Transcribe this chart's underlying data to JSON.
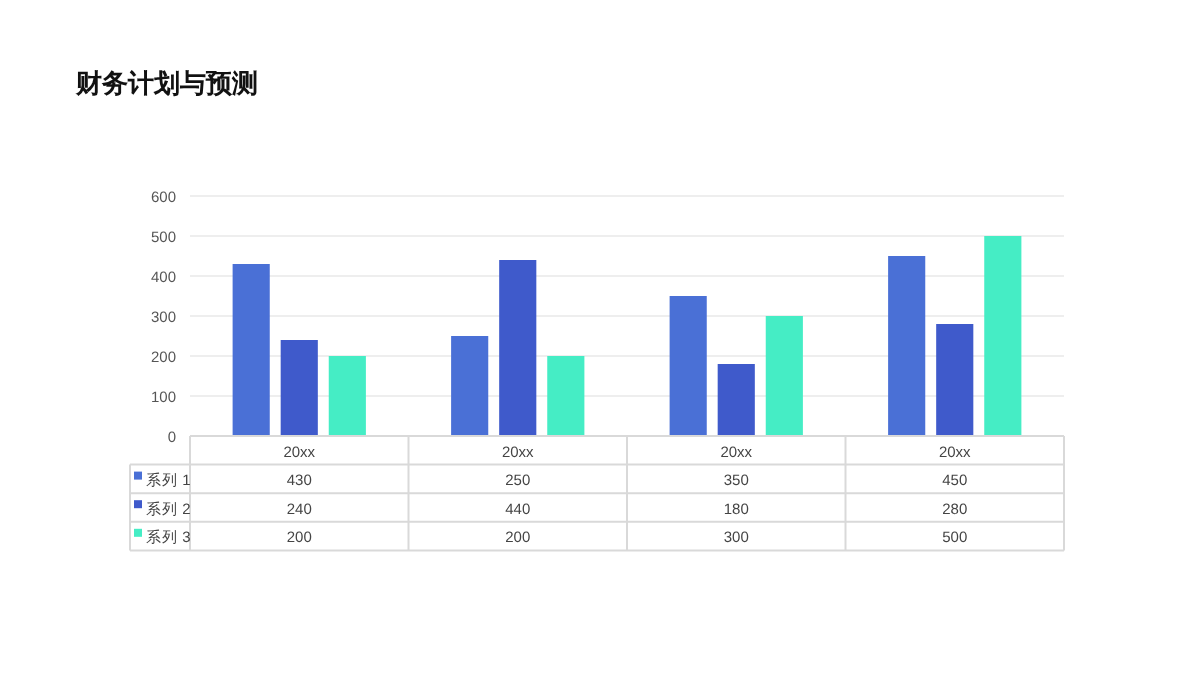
{
  "chart_data": {
    "type": "bar",
    "title": "财务计划与预测",
    "categories": [
      "20xx",
      "20xx",
      "20xx",
      "20xx"
    ],
    "series": [
      {
        "name": "系列 1",
        "color": "#4a70d6",
        "values": [
          430,
          250,
          350,
          450
        ]
      },
      {
        "name": "系列 2",
        "color": "#3f5acb",
        "values": [
          240,
          440,
          180,
          280
        ]
      },
      {
        "name": "系列 3",
        "color": "#45edc5",
        "values": [
          200,
          200,
          300,
          500
        ]
      }
    ],
    "ylim": [
      0,
      600
    ],
    "yticks": [
      0,
      100,
      200,
      300,
      400,
      500,
      600
    ],
    "grid": "y",
    "legend": "bottom",
    "data_labels": true
  }
}
